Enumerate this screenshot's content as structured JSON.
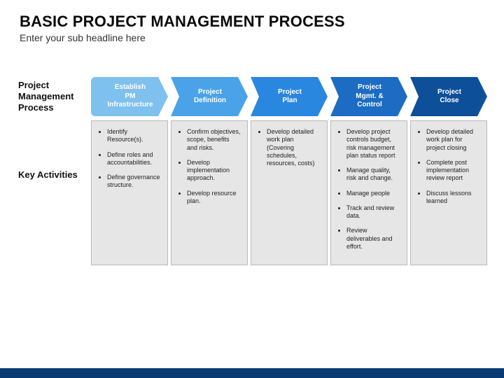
{
  "title": "Basic Project Management Process",
  "subtitle": "Enter your sub headline here",
  "labels": {
    "process": "Project Management Process",
    "activities": "Key Activities"
  },
  "footer_color": "#0a3a73",
  "box_bg": "#e6e6e6",
  "box_border": "#b8b8b8",
  "stages": [
    {
      "label": "Establish\nPM\nInfrastructure",
      "color": "#7ec0ee",
      "activities": [
        "Identify Resource(s).",
        "Define roles and accountabilities.",
        "Define governance structure."
      ]
    },
    {
      "label": "Project\nDefinition",
      "color": "#4aa3e8",
      "activities": [
        "Confirm objectives, scope, benefits and risks.",
        "Develop implementation approach.",
        "Develop resource plan."
      ]
    },
    {
      "label": "Project\nPlan",
      "color": "#2a87e0",
      "activities": [
        "Develop detailed work plan (Covering schedules, resources, costs)"
      ]
    },
    {
      "label": "Project\nMgmt. & Control",
      "color": "#1b6cc2",
      "activities": [
        "Develop project controls budget, risk management plan status report",
        "Manage quality, risk and change.",
        "Manage people",
        "Track and review data.",
        "Review deliverables and effort."
      ]
    },
    {
      "label": "Project\nClose",
      "color": "#0d4f99",
      "activities": [
        "Develop detailed work plan for project closing",
        "Complete post implementation review report",
        "Discuss lessons learned"
      ]
    }
  ]
}
